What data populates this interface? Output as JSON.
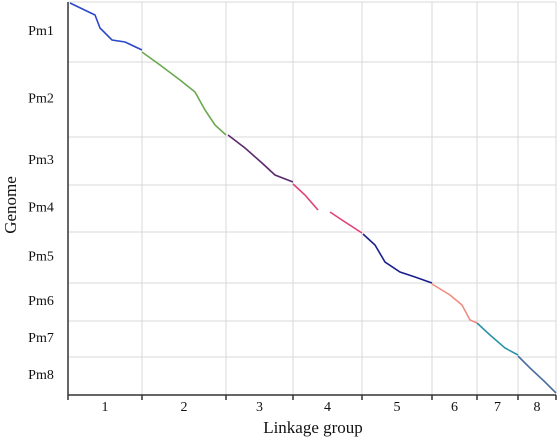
{
  "chart_data": {
    "type": "line",
    "xlabel": "Linkage group",
    "ylabel": "Genome",
    "x_categories": [
      "1",
      "2",
      "3",
      "4",
      "5",
      "6",
      "7",
      "8"
    ],
    "x_bounds": [
      0,
      74,
      158,
      225,
      294,
      364,
      409,
      450,
      488
    ],
    "y_categories": [
      "Pm1",
      "Pm2",
      "Pm3",
      "Pm4",
      "Pm5",
      "Pm6",
      "Pm7",
      "Pm8"
    ],
    "y_bounds": [
      0,
      60,
      135,
      183,
      230,
      281,
      319,
      355,
      393
    ],
    "xlim": [
      0,
      488
    ],
    "ylim": [
      0,
      393
    ],
    "y_inverted": true,
    "grid": true,
    "series": [
      {
        "color": "#2c49c9",
        "x": [
          2,
          27,
          32,
          44,
          57,
          74
        ],
        "values": [
          1,
          13,
          26,
          38,
          40,
          48
        ]
      },
      {
        "color": "#6aa84f",
        "x": [
          74,
          92,
          112,
          127,
          137,
          147,
          158
        ],
        "values": [
          50,
          63,
          78,
          90,
          108,
          123,
          133
        ]
      },
      {
        "color": "#5b2a6e",
        "x": [
          160,
          177,
          194,
          207,
          225
        ],
        "values": [
          133,
          146,
          161,
          173,
          180
        ]
      },
      {
        "color": "#e0407a",
        "x": [
          225,
          237,
          250,
          null,
          262,
          277,
          294
        ],
        "values": [
          182,
          193,
          208,
          null,
          210,
          220,
          231
        ]
      },
      {
        "color": "#1a1f8c",
        "x": [
          295,
          307,
          317,
          332,
          347,
          364
        ],
        "values": [
          232,
          243,
          260,
          270,
          275,
          281
        ]
      },
      {
        "color": "#f08c80",
        "x": [
          364,
          382,
          394,
          402,
          409
        ],
        "values": [
          282,
          293,
          303,
          318,
          321
        ]
      },
      {
        "color": "#2a93a8",
        "x": [
          409,
          422,
          437,
          450
        ],
        "values": [
          321,
          333,
          346,
          353
        ]
      },
      {
        "color": "#4a6fa0",
        "x": [
          450,
          462,
          477,
          488
        ],
        "values": [
          354,
          366,
          380,
          391
        ]
      }
    ]
  }
}
